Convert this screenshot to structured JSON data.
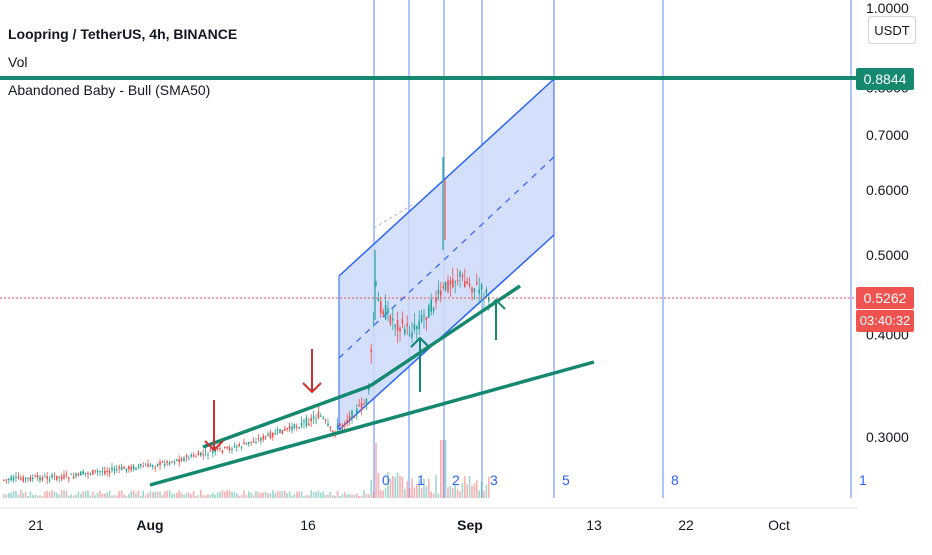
{
  "legend": {
    "symbol": "Loopring / TetherUS, 4h, BINANCE",
    "volume": "Vol",
    "indicator": "Abandoned Baby - Bull (SMA50)"
  },
  "currency": "USDT",
  "last_price": {
    "value": "0.5262",
    "countdown": "03:40:32",
    "color": "#ef5350"
  },
  "target_line": {
    "value": "0.8844",
    "color": "#15896f"
  },
  "colors": {
    "trendline": "#15896f",
    "arrow_down": "#d32f2f",
    "arrow_up": "#15896f",
    "channel": "#2962ff",
    "channel_fill": "#cdd9fb",
    "up_candle": "#26a69a",
    "down_candle": "#ef5350",
    "last_price_line": "#ef5350"
  },
  "chart_data": {
    "type": "candlestick",
    "y_axis": {
      "ticks": [
        "1.0000",
        "0.8000",
        "0.7000",
        "0.6000",
        "0.5000",
        "0.4000",
        "0.3000"
      ],
      "scale": "log",
      "range": [
        0.23,
        1.0
      ]
    },
    "x_axis": {
      "ticks": [
        "21",
        "Aug",
        "16",
        "Sep",
        "13",
        "22",
        "Oct"
      ],
      "bold_ticks": [
        "Aug",
        "Sep"
      ]
    },
    "fib_time_zone_labels": [
      "0",
      "1",
      "2",
      "3",
      "5",
      "8",
      "1"
    ],
    "annotations": {
      "down_arrows": 2,
      "up_arrows": 3
    },
    "last_price": 0.5262,
    "target_price": 0.8844
  }
}
